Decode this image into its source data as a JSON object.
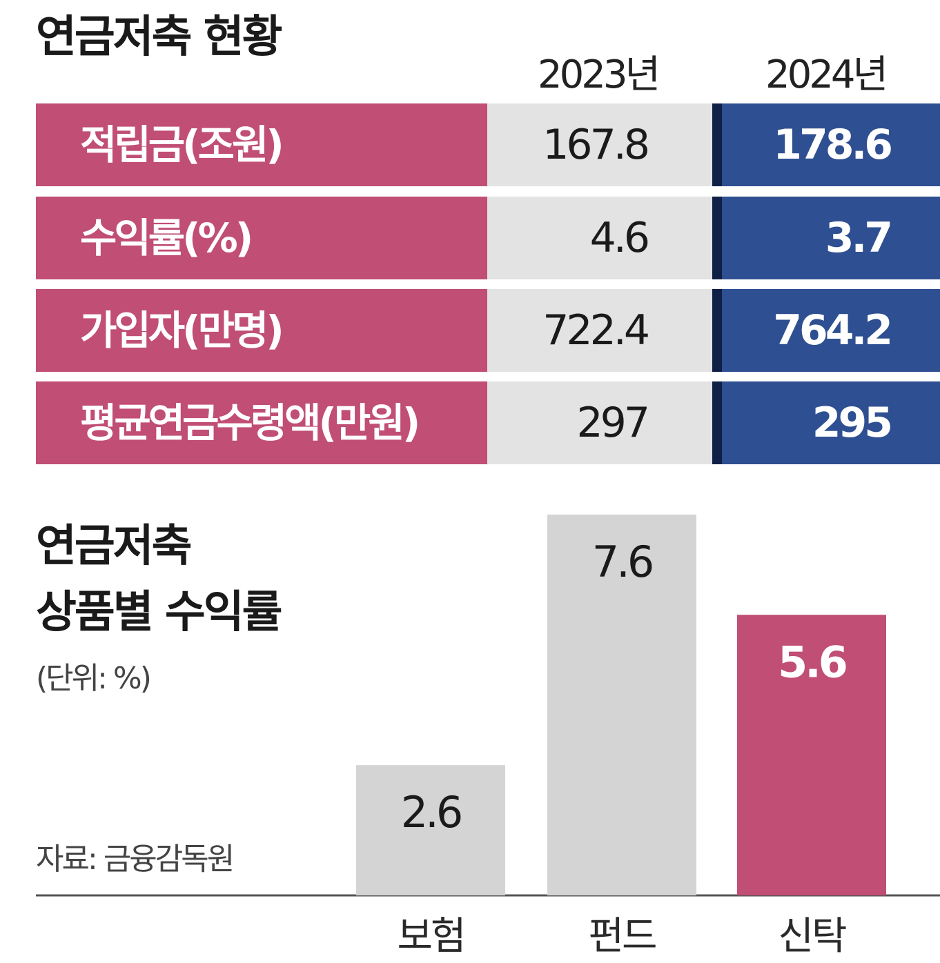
{
  "table": {
    "title": "연금저축 현황",
    "years": [
      "2023년",
      "2024년"
    ],
    "rows": [
      {
        "label": "적립금(조원)",
        "v2023": "167.8",
        "v2024": "178.6"
      },
      {
        "label": "수익률(%)",
        "v2023": "4.6",
        "v2024": "3.7"
      },
      {
        "label": "가입자(만명)",
        "v2023": "722.4",
        "v2024": "764.2"
      },
      {
        "label": "평균연금수령액(만원)",
        "v2023": "297",
        "v2024": "295"
      }
    ],
    "colors": {
      "label_bg": "#c14e74",
      "col_2023_bg": "#e3e3e3",
      "col_2024_bg": "#2e4f91",
      "col_2024_edge": "#0f1f45"
    }
  },
  "chart_data": {
    "type": "bar",
    "title": "연금저축 상품별 수익률",
    "title_lines": [
      "연금저축",
      "상품별 수익률"
    ],
    "unit": "(단위: %)",
    "categories": [
      "보험",
      "펀드",
      "신탁"
    ],
    "values": [
      2.6,
      7.6,
      5.6
    ],
    "value_labels": [
      "2.6",
      "7.6",
      "5.6"
    ],
    "colors": [
      "#d4d4d4",
      "#d4d4d4",
      "#c14e74"
    ],
    "value_label_colors": [
      "#1a1a1a",
      "#1a1a1a",
      "#ffffff"
    ],
    "ylim": [
      0,
      7.6
    ],
    "grid": false,
    "legend": "none"
  },
  "source": "자료: 금융감독원"
}
